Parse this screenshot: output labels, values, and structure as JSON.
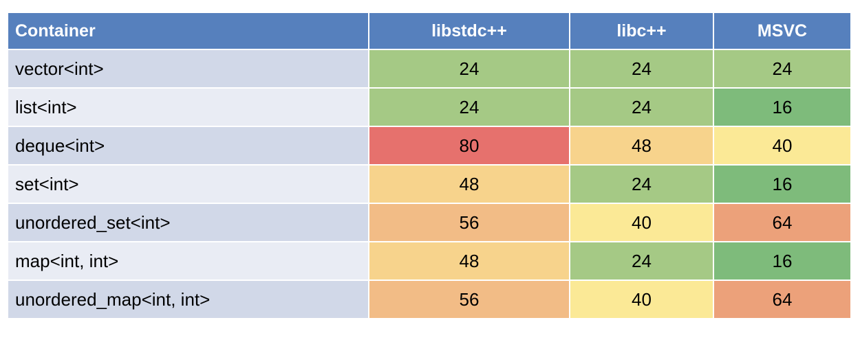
{
  "colors": {
    "header_bg": "#5680bd",
    "header_text": "#ffffff",
    "row_label_odd": "#d1d8e8",
    "row_label_even": "#e9ecf4",
    "scale": {
      "16": "#7ebb7b",
      "24": "#a5c985",
      "40": "#fbe996",
      "48": "#f7d38c",
      "56": "#f2bc86",
      "64": "#eca17a",
      "80": "#e6716d"
    }
  },
  "chart_data": {
    "type": "table",
    "columns": [
      "Container",
      "libstdc++",
      "libc++",
      "MSVC"
    ],
    "rows": [
      {
        "label": "vector<int>",
        "values": [
          24,
          24,
          24
        ]
      },
      {
        "label": "list<int>",
        "values": [
          24,
          24,
          16
        ]
      },
      {
        "label": "deque<int>",
        "values": [
          80,
          48,
          40
        ]
      },
      {
        "label": "set<int>",
        "values": [
          48,
          24,
          16
        ]
      },
      {
        "label": "unordered_set<int>",
        "values": [
          56,
          40,
          64
        ]
      },
      {
        "label": "map<int, int>",
        "values": [
          48,
          24,
          16
        ]
      },
      {
        "label": "unordered_map<int, int>",
        "values": [
          56,
          40,
          64
        ]
      }
    ]
  }
}
